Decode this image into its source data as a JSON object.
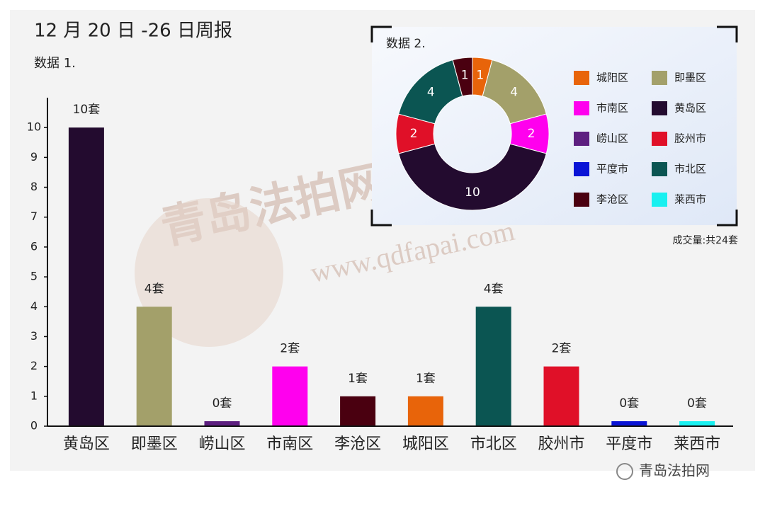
{
  "chart_data": [
    {
      "type": "bar",
      "title": "12 月 20 日 -26 日周报",
      "subtitle": "数据 1.",
      "categories": [
        "黄岛区",
        "即墨区",
        "崂山区",
        "市南区",
        "李沧区",
        "城阳区",
        "市北区",
        "胶州市",
        "平度市",
        "莱西市"
      ],
      "values": [
        10,
        4,
        0,
        2,
        1,
        1,
        4,
        2,
        0,
        0
      ],
      "value_labels": [
        "10套",
        "4套",
        "0套",
        "2套",
        "1套",
        "1套",
        "4套",
        "2套",
        "0套",
        "0套"
      ],
      "colors": [
        "#230b2f",
        "#a3a06a",
        "#5d1f80",
        "#ff00ee",
        "#4a0010",
        "#e8640a",
        "#0b5552",
        "#e01028",
        "#0a14d6",
        "#18f0f0"
      ],
      "ylim": [
        0,
        11
      ],
      "yticks": [
        0,
        1,
        2,
        3,
        4,
        5,
        6,
        7,
        8,
        9,
        10
      ]
    },
    {
      "type": "donut",
      "title": "数据 2.",
      "categories": [
        "城阳区",
        "即墨区",
        "市南区",
        "黄岛区",
        "崂山区",
        "胶州市",
        "平度市",
        "市北区",
        "李沧区",
        "莱西市"
      ],
      "values": [
        1,
        4,
        2,
        10,
        0,
        2,
        0,
        4,
        1,
        0
      ],
      "colors": [
        "#e8640a",
        "#a3a06a",
        "#ff00ee",
        "#230b2f",
        "#5d1f80",
        "#e01028",
        "#0a14d6",
        "#0b5552",
        "#4a0010",
        "#18f0f0"
      ],
      "note": "成交量:共24套"
    }
  ],
  "watermark": [
    "青岛法拍网",
    "www.qdfapai.com"
  ],
  "source": "青岛法拍网"
}
